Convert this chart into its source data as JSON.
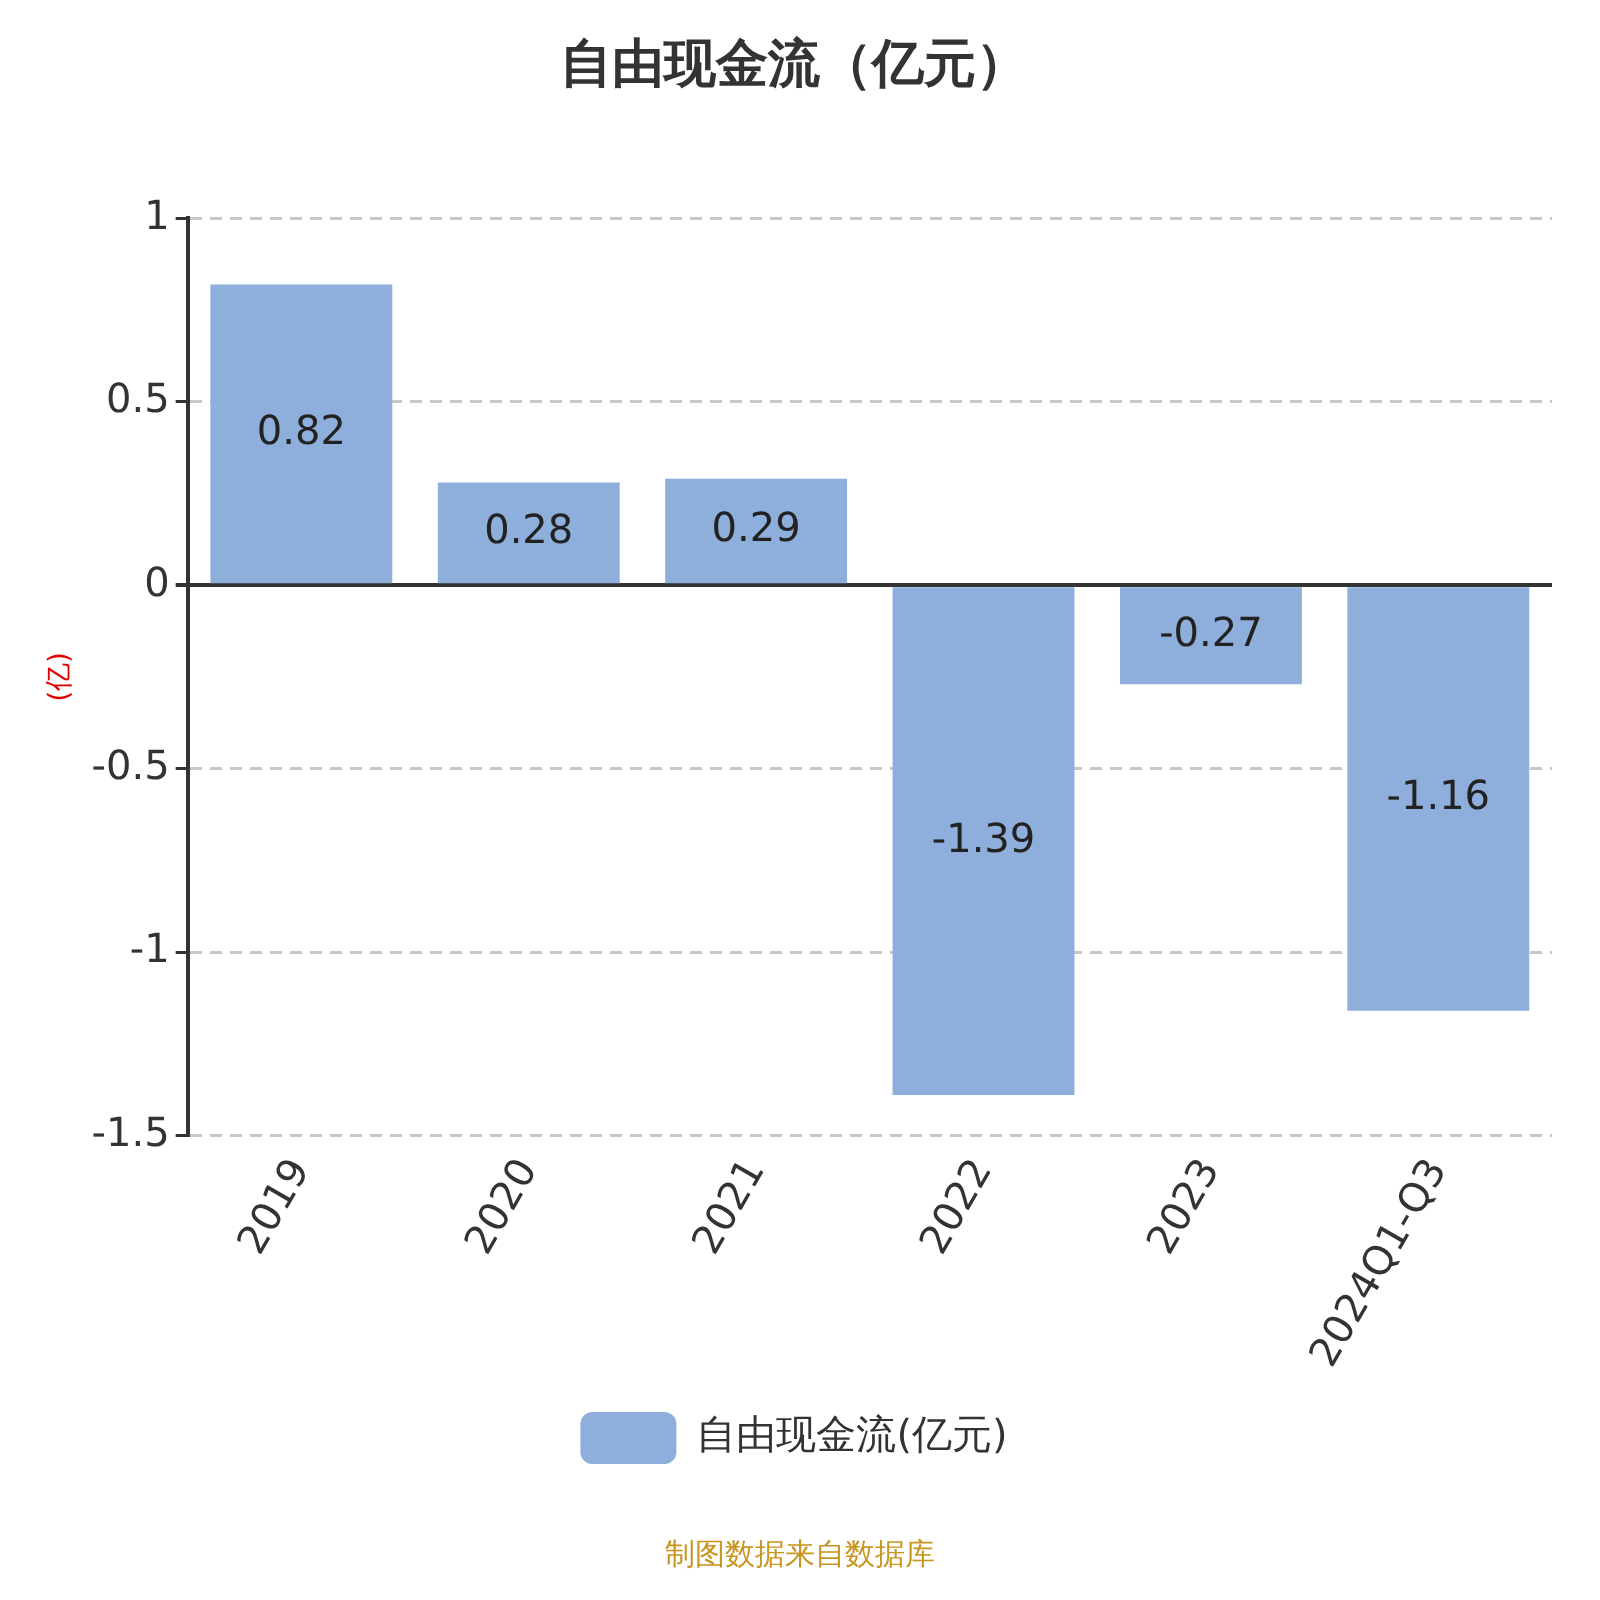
{
  "chart_data": {
    "type": "bar",
    "title": "自由现金流（亿元）",
    "ylabel": "(亿)",
    "categories": [
      "2019",
      "2020",
      "2021",
      "2022",
      "2023",
      "2024Q1-Q3"
    ],
    "series": [
      {
        "name": "自由现金流(亿元)",
        "color": "#8eaedb",
        "values": [
          0.82,
          0.28,
          0.29,
          -1.39,
          -0.27,
          -1.16
        ]
      }
    ],
    "ylim": [
      -1.5,
      1
    ],
    "yticks": [
      -1.5,
      -1,
      -0.5,
      0,
      0.5,
      1
    ],
    "grid": "y",
    "legend": "bottom",
    "data_labels": true,
    "annotations": [
      "制图数据来自数据库"
    ]
  }
}
